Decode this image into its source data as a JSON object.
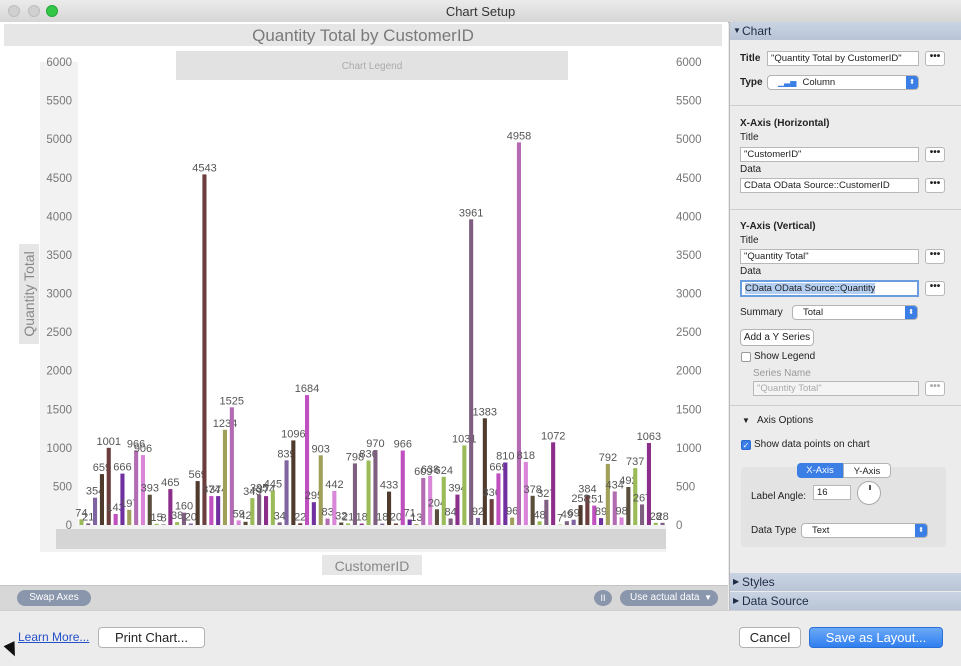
{
  "window": {
    "title": "Chart Setup"
  },
  "chart_data": {
    "type": "bar",
    "title": "Quantity Total by CustomerID",
    "xlabel": "CustomerID",
    "ylabel": "Quantity Total",
    "legend_label": "Chart Legend",
    "ylim": [
      0,
      6000
    ],
    "yticks": [
      0,
      500,
      1000,
      1500,
      2000,
      2500,
      3000,
      3500,
      4000,
      4500,
      5000,
      5500,
      6000
    ],
    "labels": [
      "74",
      "21",
      "354",
      "659",
      "1001",
      "143",
      "666",
      "197",
      "966",
      "906",
      "393",
      "15",
      "8",
      "465",
      "38",
      "160",
      "20",
      "569",
      "4543",
      "374",
      "374",
      "1234",
      "1525",
      "59",
      "42",
      "349",
      "395",
      "374",
      "445",
      "34",
      "839",
      "1096",
      "22",
      "1684",
      "295",
      "903",
      "83",
      "442",
      "32",
      "21",
      "798",
      "18",
      "836",
      "970",
      "18",
      "433",
      "20",
      "966",
      "71",
      "13",
      "609",
      "638",
      "204",
      "624",
      "84",
      "394",
      "1031",
      "3961",
      "92",
      "1383",
      "336",
      "669",
      "810",
      "96",
      "4958",
      "818",
      "378",
      "48",
      "327",
      "1072",
      "7",
      "49",
      "69",
      "258",
      "384",
      "251",
      "89",
      "792",
      "434",
      "98",
      "492",
      "737",
      "267",
      "1063",
      "28",
      "28"
    ],
    "values": [
      74,
      21,
      354,
      659,
      1001,
      143,
      666,
      197,
      966,
      906,
      393,
      15,
      8,
      465,
      38,
      160,
      20,
      569,
      4543,
      374,
      374,
      1234,
      1525,
      59,
      42,
      349,
      395,
      374,
      445,
      34,
      839,
      1096,
      22,
      1684,
      295,
      903,
      83,
      442,
      32,
      21,
      798,
      18,
      836,
      970,
      18,
      433,
      20,
      966,
      71,
      13,
      609,
      638,
      204,
      624,
      84,
      394,
      1031,
      3961,
      92,
      1383,
      336,
      669,
      810,
      96,
      4958,
      818,
      378,
      48,
      327,
      1072,
      7,
      49,
      69,
      258,
      384,
      251,
      89,
      792,
      434,
      98,
      492,
      737,
      267,
      1063,
      28,
      28
    ],
    "colors": [
      "#9bbb59",
      "#7f5f7f",
      "#8064a2",
      "#4f3a2e",
      "#6b3d3d",
      "#c04fc0",
      "#7030a0",
      "#a0a05a",
      "#b36bb3",
      "#d986d9",
      "#5a4d3b",
      "#9bbb59",
      "#7f5f7f",
      "#8b2f8b"
    ],
    "grid": false,
    "right_axis": true
  },
  "bottom_bar": {
    "swap_axes": "Swap Axes",
    "pause_icon": "pause-icon",
    "pause_glyph": "II",
    "actual_data": "Use actual data",
    "caret": "▼"
  },
  "sidebar": {
    "chart": {
      "header": "Chart",
      "title_label": "Title",
      "title_value": "\"Quantity Total by CustomerID\"",
      "type_label": "Type",
      "type_value": "Column",
      "more": "•••"
    },
    "x_axis": {
      "header": "X-Axis (Horizontal)",
      "title_label": "Title",
      "title_value": "\"CustomerID\"",
      "data_label": "Data",
      "data_value": "CData OData Source::CustomerID"
    },
    "y_axis": {
      "header": "Y-Axis (Vertical)",
      "title_label": "Title",
      "title_value": "\"Quantity Total\"",
      "data_label": "Data",
      "data_value": "CData OData Source::Quantity",
      "summary_label": "Summary",
      "summary_value": "Total",
      "add_series": "Add a Y Series",
      "show_legend": "Show Legend",
      "series_name_label": "Series Name",
      "series_name_value": "\"Quantity Total\""
    },
    "axis_options": {
      "header": "Axis Options",
      "show_points": "Show data points on chart",
      "tab_x": "X-Axis",
      "tab_y": "Y-Axis",
      "label_angle_label": "Label Angle:",
      "label_angle_value": "16",
      "data_type_label": "Data Type",
      "data_type_value": "Text"
    },
    "styles_header": "Styles",
    "data_source_header": "Data Source",
    "check_glyph": "✓",
    "tri_open": "▼",
    "tri_closed": "▶",
    "arrows": "⬍"
  },
  "footer": {
    "learn_more": "Learn More...",
    "print_chart": "Print Chart...",
    "cancel": "Cancel",
    "save_layout": "Save as Layout..."
  }
}
